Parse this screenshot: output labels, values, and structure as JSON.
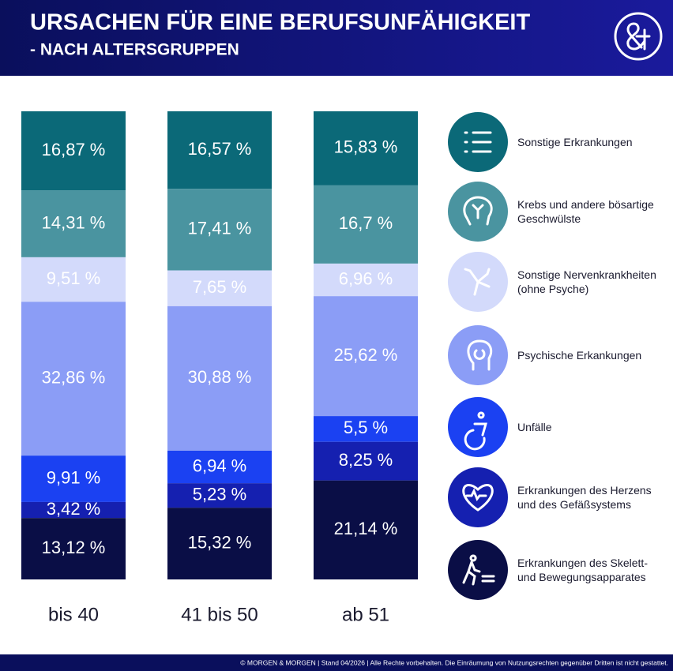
{
  "chart_data": {
    "type": "stacked-bar",
    "title": "URSACHEN FÜR EINE BERUFSUNFÄHIGKEIT",
    "subtitle": "- NACH ALTERSGRUPPEN",
    "footer": "© MORGEN & MORGEN | Stand 04/2026 | Alle Rechte vorbehalten. Die Einräumung von Nutzungsrechten gegenüber Dritten ist nicht gestattet.",
    "categories": [
      "bis 40",
      "41 bis 50",
      "ab 51"
    ],
    "series": [
      {
        "name": "Sonstige Erkrankungen",
        "color": "#0b6978",
        "values": [
          16.87,
          16.57,
          15.83
        ],
        "value_labels": [
          "16,87 %",
          "16,57 %",
          "15,83 %"
        ]
      },
      {
        "name": "Krebs und andere bösartige Geschwülste",
        "color": "#4a94a0",
        "values": [
          14.31,
          17.41,
          16.7
        ],
        "value_labels": [
          "14,31 %",
          "17,41 %",
          "16,7 %"
        ]
      },
      {
        "name": "Sonstige Nervenkrankheiten (ohne Psyche)",
        "color": "#d3dafb",
        "values": [
          9.51,
          7.65,
          6.96
        ],
        "value_labels": [
          "9,51 %",
          "7,65 %",
          "6,96 %"
        ]
      },
      {
        "name": "Psychische Erkankungen",
        "color": "#8b9df6",
        "values": [
          32.86,
          30.88,
          25.62
        ],
        "value_labels": [
          "32,86 %",
          "30,88 %",
          "25,62 %"
        ]
      },
      {
        "name": "Unfälle",
        "color": "#1b41f2",
        "values": [
          9.91,
          6.94,
          5.5
        ],
        "value_labels": [
          "9,91 %",
          "6,94 %",
          "5,5 %"
        ]
      },
      {
        "name": "Erkrankungen des Herzens und des Gefäßsystems",
        "color": "#1520b0",
        "values": [
          3.42,
          5.23,
          8.25
        ],
        "value_labels": [
          "3,42 %",
          "5,23 %",
          "8,25 %"
        ]
      },
      {
        "name": "Erkrankungen des Skelett- und Bewegungsapparates",
        "color": "#0a0e46",
        "values": [
          13.12,
          15.32,
          21.14
        ],
        "value_labels": [
          "13,12 %",
          "15,32 %",
          "21,14 %"
        ]
      }
    ]
  }
}
